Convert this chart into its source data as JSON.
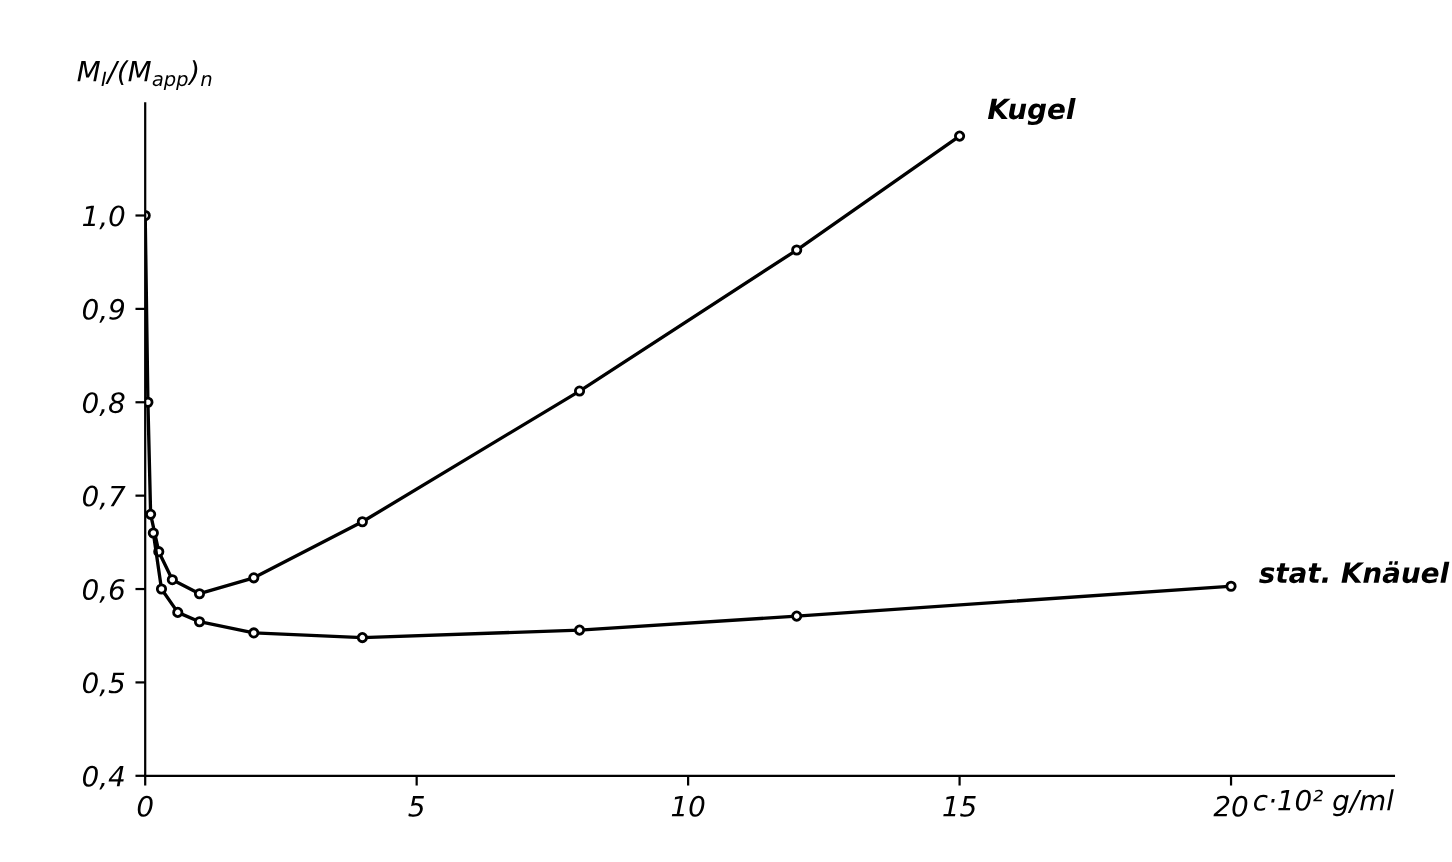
{
  "chart_data": {
    "type": "line",
    "xlabel": "c·10² g/ml",
    "ylabel": "M$_{I}$/(M$_{app}$)$_{n}$",
    "xlim": [
      0,
      23
    ],
    "xticks": [
      0,
      5,
      10,
      15,
      20
    ],
    "ylim": [
      0.4,
      1.12
    ],
    "yticks": [
      {
        "value": 0.4,
        "label": "0,4"
      },
      {
        "value": 0.5,
        "label": "0,5"
      },
      {
        "value": 0.6,
        "label": "0,6"
      },
      {
        "value": 0.7,
        "label": "0,7"
      },
      {
        "value": 0.8,
        "label": "0,8"
      },
      {
        "value": 0.9,
        "label": "0,9"
      },
      {
        "value": 1.0,
        "label": "1,0"
      }
    ],
    "grid": false,
    "legend": false,
    "marker": "circle",
    "line_style": "solid",
    "series": [
      {
        "name": "Kugel",
        "color": "#000000",
        "x": [
          0,
          0.05,
          0.1,
          0.25,
          0.5,
          1,
          2,
          4,
          8,
          12,
          15
        ],
        "values": [
          1.0,
          0.8,
          0.68,
          0.64,
          0.61,
          0.595,
          0.612,
          0.672,
          0.812,
          0.963,
          1.085
        ]
      },
      {
        "name": "stat. Knäuel",
        "color": "#000000",
        "x": [
          0.15,
          0.3,
          0.6,
          1,
          2,
          4,
          8,
          12,
          20
        ],
        "values": [
          0.66,
          0.6,
          0.575,
          0.565,
          0.553,
          0.548,
          0.556,
          0.571,
          0.603
        ]
      }
    ]
  }
}
